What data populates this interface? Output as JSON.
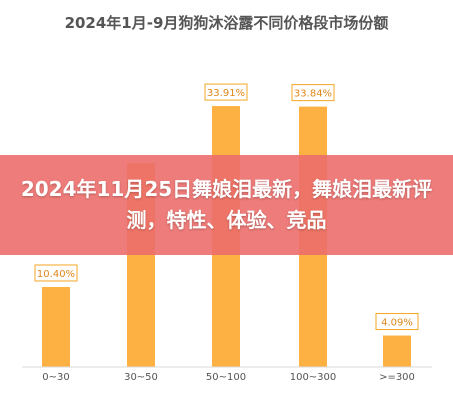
{
  "banner": {
    "text": "2024年11月25日舞娘泪最新，舞娘泪最新评测，特性、体验、竞品"
  },
  "colors": {
    "bar": "#FDB142",
    "label_border": "#F5A623",
    "label_text": "#E0861A",
    "banner": "#EC6E6C"
  },
  "chart_data": {
    "type": "bar",
    "title": "2024年1月-9月狗狗沐浴露不同价格段市场份额",
    "xlabel": "",
    "ylabel": "",
    "categories": [
      "0~30",
      "30~50",
      "50~100",
      "100~300",
      ">=300"
    ],
    "values": [
      10.4,
      26.5,
      33.91,
      33.84,
      4.09
    ],
    "data_labels": [
      "10.40%",
      "",
      "33.91%",
      "33.84%",
      "4.09%"
    ],
    "ylim": [
      0,
      36
    ],
    "grid": false,
    "legend": "none"
  }
}
